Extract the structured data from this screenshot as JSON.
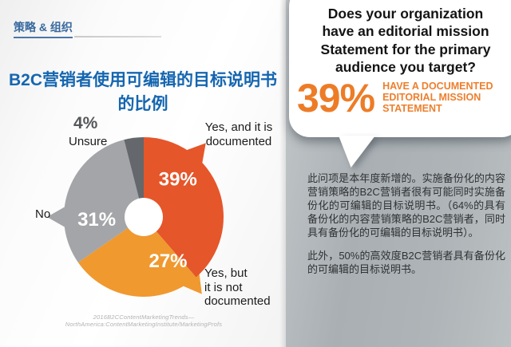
{
  "colors": {
    "kicker_blue": "#38699f",
    "title_blue": "#1566b0",
    "stat_orange": "#ed7c27",
    "bubble_bg": "#ffffff",
    "right_panel_gray": "#aeb4b7"
  },
  "left_panel": {
    "kicker": "策略 & 组织",
    "title_line1": "B2C营销者使用可编辑的目标说明书",
    "title_line2": "的比例",
    "source": "2016B2CContentMarketingTrends—NorthAmerica:ContentMarketingInstitute/MarketingProfs"
  },
  "chart_data": {
    "type": "pie",
    "title": "B2C营销者使用可编辑的目标说明书的比例",
    "donut_hole_frac": 0.24,
    "start_angle_deg": 0,
    "direction": "clockwise",
    "legend_position": "outside-callouts",
    "slices": [
      {
        "label": "Yes, and it is documented",
        "value": 39,
        "pct_label": "39%",
        "color": "#e5562a",
        "pointer_angle_deg": 40,
        "label_angle_deg": 42,
        "label_radius_frac": 0.64
      },
      {
        "label": "Yes, but it is not documented",
        "value": 27,
        "pct_label": "27%",
        "color": "#f0992f",
        "pointer_angle_deg": 143,
        "label_angle_deg": 151,
        "label_radius_frac": 0.63
      },
      {
        "label": "No",
        "value": 31,
        "pct_label": "31%",
        "color": "#a3a5a8",
        "pointer_angle_deg": 270,
        "label_angle_deg": 267,
        "label_radius_frac": 0.59
      },
      {
        "label": "Unsure",
        "value": 4,
        "pct_label": "4%",
        "color": "#64676b",
        "pointer_angle_deg": null,
        "label_angle_deg": null,
        "label_radius_frac": null
      }
    ],
    "callouts": {
      "unsure_pct": "4%",
      "unsure_label": "Unsure",
      "yes_documented_lines": [
        "Yes, and it is",
        "documented"
      ],
      "no_label": "No",
      "yes_not_documented_lines": [
        "Yes, but",
        "it is not",
        "documented"
      ]
    }
  },
  "right_panel": {
    "question_lines": [
      "Does your organization",
      "have an editorial mission",
      "Statement for the primary",
      "audience you target?"
    ],
    "stat_value": "39%",
    "stat_caption_lines": [
      "HAVE A DOCUMENTED",
      "EDITORIAL MISSION",
      "STATEMENT"
    ],
    "paragraph1": "此问项是本年度新增的。实施备份化的内容营销策略的B2C营销者很有可能同时实施备份化的可编辑的目标说明书。（64%的具有备份化的内容营销策略的B2C营销者，同时具有备份化的可编辑的目标说明书）。",
    "paragraph2": "此外，50%的高效度B2C营销者具有备份化的可编辑的目标说明书。"
  }
}
